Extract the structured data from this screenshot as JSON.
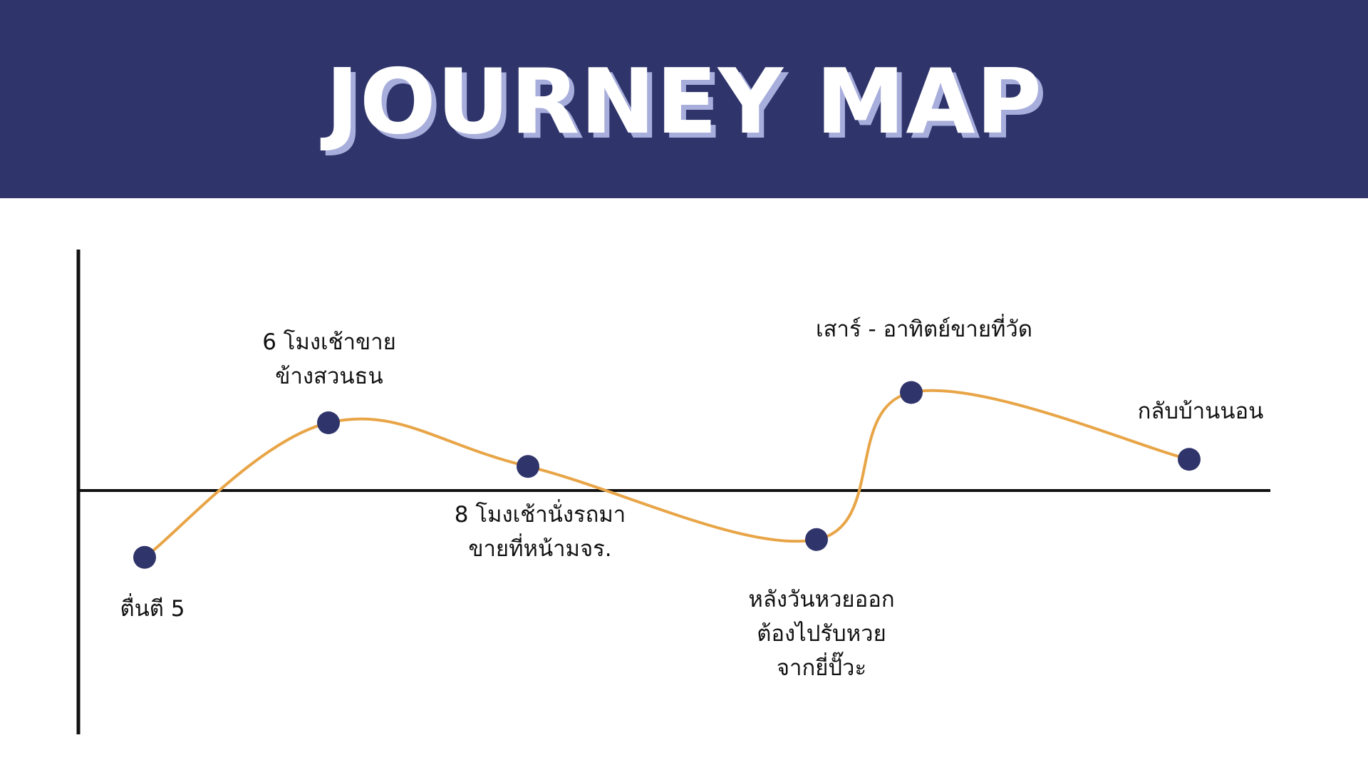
{
  "header": {
    "title": "JOURNEY MAP"
  },
  "colors": {
    "banner": "#2f346b",
    "title_shadow": "#a8aedc",
    "curve": "#e8a547",
    "marker": "#2f346b",
    "axis": "#111111"
  },
  "journey": {
    "stages": [
      {
        "label_lines": [
          "ตื่นตี 5"
        ],
        "level": -0.75
      },
      {
        "label_lines": [
          "6 โมงเช้าขาย",
          "ข้างสวนธน"
        ],
        "level": 0.76
      },
      {
        "label_lines": [
          "8 โมงเช้านั่งรถมา",
          "ขายที่หน้ามจร."
        ],
        "level": 0.27
      },
      {
        "label_lines": [
          "หลังวันหวยออก",
          "ต้องไปรับหวย",
          "จากยี่ปั๊วะ"
        ],
        "level": -0.55
      },
      {
        "label_lines": [
          "เสาร์ - อาทิตย์ขายที่วัด"
        ],
        "level": 1.1
      },
      {
        "label_lines": [
          "กลับบ้านนอน"
        ],
        "level": 0.35
      }
    ]
  }
}
